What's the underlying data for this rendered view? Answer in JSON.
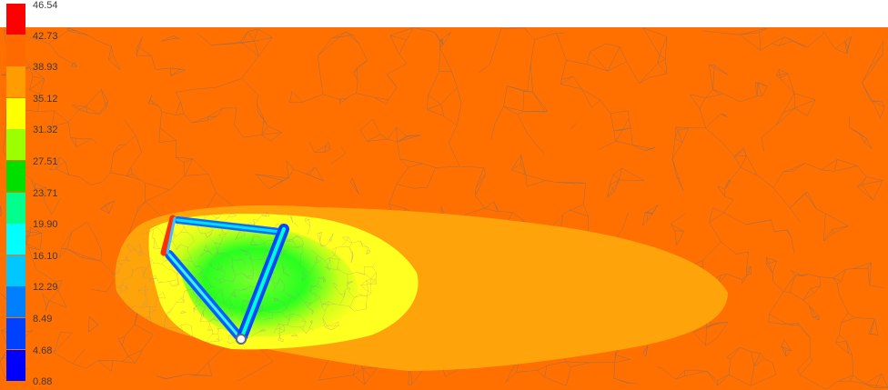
{
  "legend": {
    "ticks": [
      "46.54",
      "42.73",
      "38.93",
      "35.12",
      "31.32",
      "27.51",
      "23.71",
      "19.90",
      "16.10",
      "12.29",
      "8.49",
      "4.68",
      "0.88"
    ],
    "colors": [
      "#ff0000",
      "#ff6a00",
      "#ff9c00",
      "#ffff00",
      "#9cff00",
      "#00e000",
      "#00ff8c",
      "#00ffff",
      "#00c8ff",
      "#0080ff",
      "#0040ff",
      "#0000ff"
    ]
  },
  "field": {
    "background_color": "#ff7000",
    "wake_color": "#ffa30a",
    "near_color": "#ffff20"
  }
}
